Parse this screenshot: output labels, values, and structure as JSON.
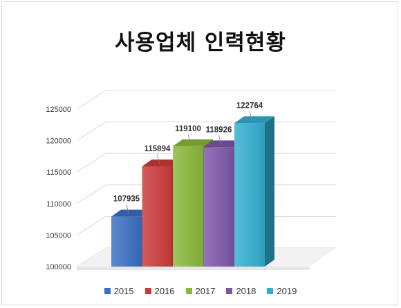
{
  "chart_data": {
    "type": "bar",
    "title": "사용업체 인력현황",
    "categories": [
      "2015",
      "2016",
      "2017",
      "2018",
      "2019"
    ],
    "values": [
      107935,
      115894,
      119100,
      118926,
      122764
    ],
    "ylim": [
      100000,
      125000
    ],
    "yticks": [
      "100000",
      "105000",
      "110000",
      "115000",
      "120000",
      "125000"
    ],
    "grid": true,
    "three_d": true,
    "legend_position": "bottom",
    "colors": [
      "#3a6fc4",
      "#cc3a38",
      "#8ab83a",
      "#7d56a8",
      "#31aed0"
    ],
    "series": [
      {
        "name": "2015",
        "value": 107935,
        "label": "107935"
      },
      {
        "name": "2016",
        "value": 115894,
        "label": "115894"
      },
      {
        "name": "2017",
        "value": 119100,
        "label": "119100"
      },
      {
        "name": "2018",
        "value": 118926,
        "label": "118926"
      },
      {
        "name": "2019",
        "value": 122764,
        "label": "122764"
      }
    ]
  }
}
